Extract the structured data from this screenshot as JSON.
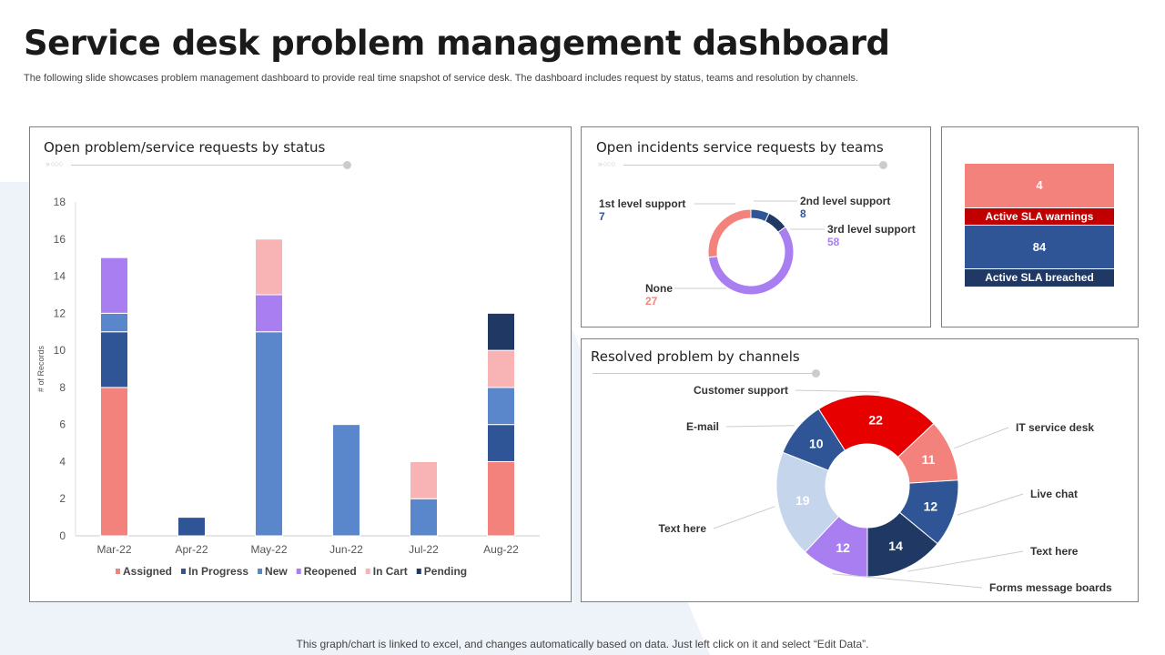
{
  "title": "Service desk problem management dashboard",
  "subtitle": "The following slide showcases problem management dashboard to provide real time snapshot of service desk. The dashboard includes request by status, teams and resolution by channels.",
  "footer": "This graph/chart is linked to excel, and changes automatically based on data. Just left click on it and select “Edit Data”.",
  "panels": {
    "status": "Open problem/service requests by status",
    "teams": "Open incidents service requests by teams",
    "channels": "Resolved problem by channels"
  },
  "sla": {
    "warnings_value": "4",
    "warnings_label": "Active SLA warnings",
    "breached_value": "84",
    "breached_label": "Active SLA breached",
    "colors": {
      "warn_value": "#f4827c",
      "warn_label": "#c00000",
      "breach_value": "#2f5597",
      "breach_label": "#203864"
    }
  },
  "chart_data": [
    {
      "type": "bar",
      "stacked": true,
      "title": "Open problem/service requests by status",
      "xlabel": "",
      "ylabel": "# of Records",
      "ylim": [
        0,
        18
      ],
      "yticks": [
        0,
        2,
        4,
        6,
        8,
        10,
        12,
        14,
        16,
        18
      ],
      "grid": false,
      "legend": "bottom",
      "categories": [
        "Mar-22",
        "Apr-22",
        "May-22",
        "Jun-22",
        "Jul-22",
        "Aug-22"
      ],
      "series": [
        {
          "name": "Assigned",
          "color": "#f4827c",
          "values": [
            8,
            0,
            0,
            0,
            0,
            4
          ]
        },
        {
          "name": "In Progress",
          "color": "#2f5597",
          "values": [
            3,
            1,
            0,
            0,
            0,
            2
          ]
        },
        {
          "name": "New",
          "color": "#5a86cc",
          "values": [
            1,
            0,
            11,
            6,
            2,
            2
          ]
        },
        {
          "name": "Reopened",
          "color": "#a87ef0",
          "values": [
            3,
            0,
            2,
            0,
            0,
            0
          ]
        },
        {
          "name": "In Cart",
          "color": "#f8b4b4",
          "values": [
            0,
            0,
            3,
            0,
            2,
            2
          ]
        },
        {
          "name": "Pending",
          "color": "#203864",
          "values": [
            0,
            0,
            0,
            0,
            0,
            2
          ]
        }
      ]
    },
    {
      "type": "pie",
      "donut": true,
      "title": "Open incidents service requests by teams",
      "slices": [
        {
          "label": "1st level support",
          "value": 7,
          "color": "#2f5597"
        },
        {
          "label": "2nd level support",
          "value": 8,
          "color": "#203864"
        },
        {
          "label": "3rd level support",
          "value": 58,
          "color": "#a87ef0"
        },
        {
          "label": "None",
          "value": 27,
          "color": "#f4827c"
        }
      ]
    },
    {
      "type": "pie",
      "donut": true,
      "title": "Resolved problem by channels",
      "slices": [
        {
          "label": "Customer support",
          "value": 22,
          "color": "#e60000"
        },
        {
          "label": "IT service desk",
          "value": 11,
          "color": "#f4827c"
        },
        {
          "label": "Live chat",
          "value": 12,
          "color": "#2f5597"
        },
        {
          "label": "Text here",
          "value": 14,
          "color": "#203864"
        },
        {
          "label": "Forms message boards",
          "value": 12,
          "color": "#a87ef0"
        },
        {
          "label": "Text here",
          "value": 19,
          "color": "#c5d5ec"
        },
        {
          "label": "E-mail",
          "value": 10,
          "color": "#2f5597"
        }
      ]
    }
  ]
}
